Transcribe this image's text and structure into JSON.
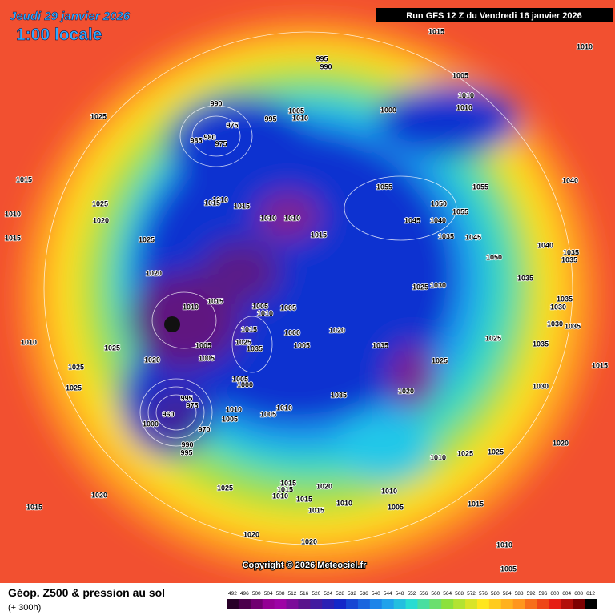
{
  "header": {
    "date": "Jeudi 29 janvier 2026",
    "time": "1:00 locale",
    "run": "Run GFS 12 Z du Vendredi 16 janvier 2026"
  },
  "map": {
    "copyright": "Copyright © 2026 Meteociel.fr",
    "pressure_labels": [
      1015,
      1010,
      995,
      990,
      1005,
      1025,
      990,
      1010,
      1010,
      1000,
      1005,
      1010,
      995,
      975,
      985,
      980,
      975,
      1015,
      1010,
      1015,
      1055,
      1055,
      1050,
      1055,
      1040,
      1010,
      1015,
      1015,
      1010,
      1010,
      1015,
      1025,
      1020,
      1025,
      1020,
      1045,
      1040,
      1035,
      1045,
      1050,
      1040,
      1035,
      1035,
      1025,
      1030,
      1035,
      1035,
      1030,
      1030,
      1035,
      1010,
      1015,
      1005,
      1010,
      1005,
      1015,
      1000,
      1020,
      1025,
      1035,
      1005,
      1035,
      1025,
      1025,
      1035,
      1015,
      1010,
      1025,
      1020,
      1005,
      1005,
      1025,
      1005,
      1000,
      1035,
      1020,
      1030,
      1025,
      1010,
      1010,
      1005,
      1005,
      995,
      975,
      960,
      1000,
      970,
      990,
      995,
      1020,
      1010,
      1025,
      1025,
      1025,
      1015,
      1015,
      1010,
      1020,
      1010,
      1015,
      1010,
      1005,
      1015,
      1015,
      1015,
      1020,
      1020,
      1020,
      1010,
      1005
    ]
  },
  "legend": {
    "title": "Géop. Z500 & pression au sol",
    "subtitle": "(+ 300h)",
    "scale": [
      492,
      496,
      500,
      504,
      508,
      512,
      516,
      520,
      524,
      528,
      532,
      536,
      540,
      544,
      548,
      552,
      556,
      560,
      564,
      568,
      572,
      576,
      580,
      584,
      588,
      592,
      596,
      600,
      604,
      608,
      612
    ]
  }
}
